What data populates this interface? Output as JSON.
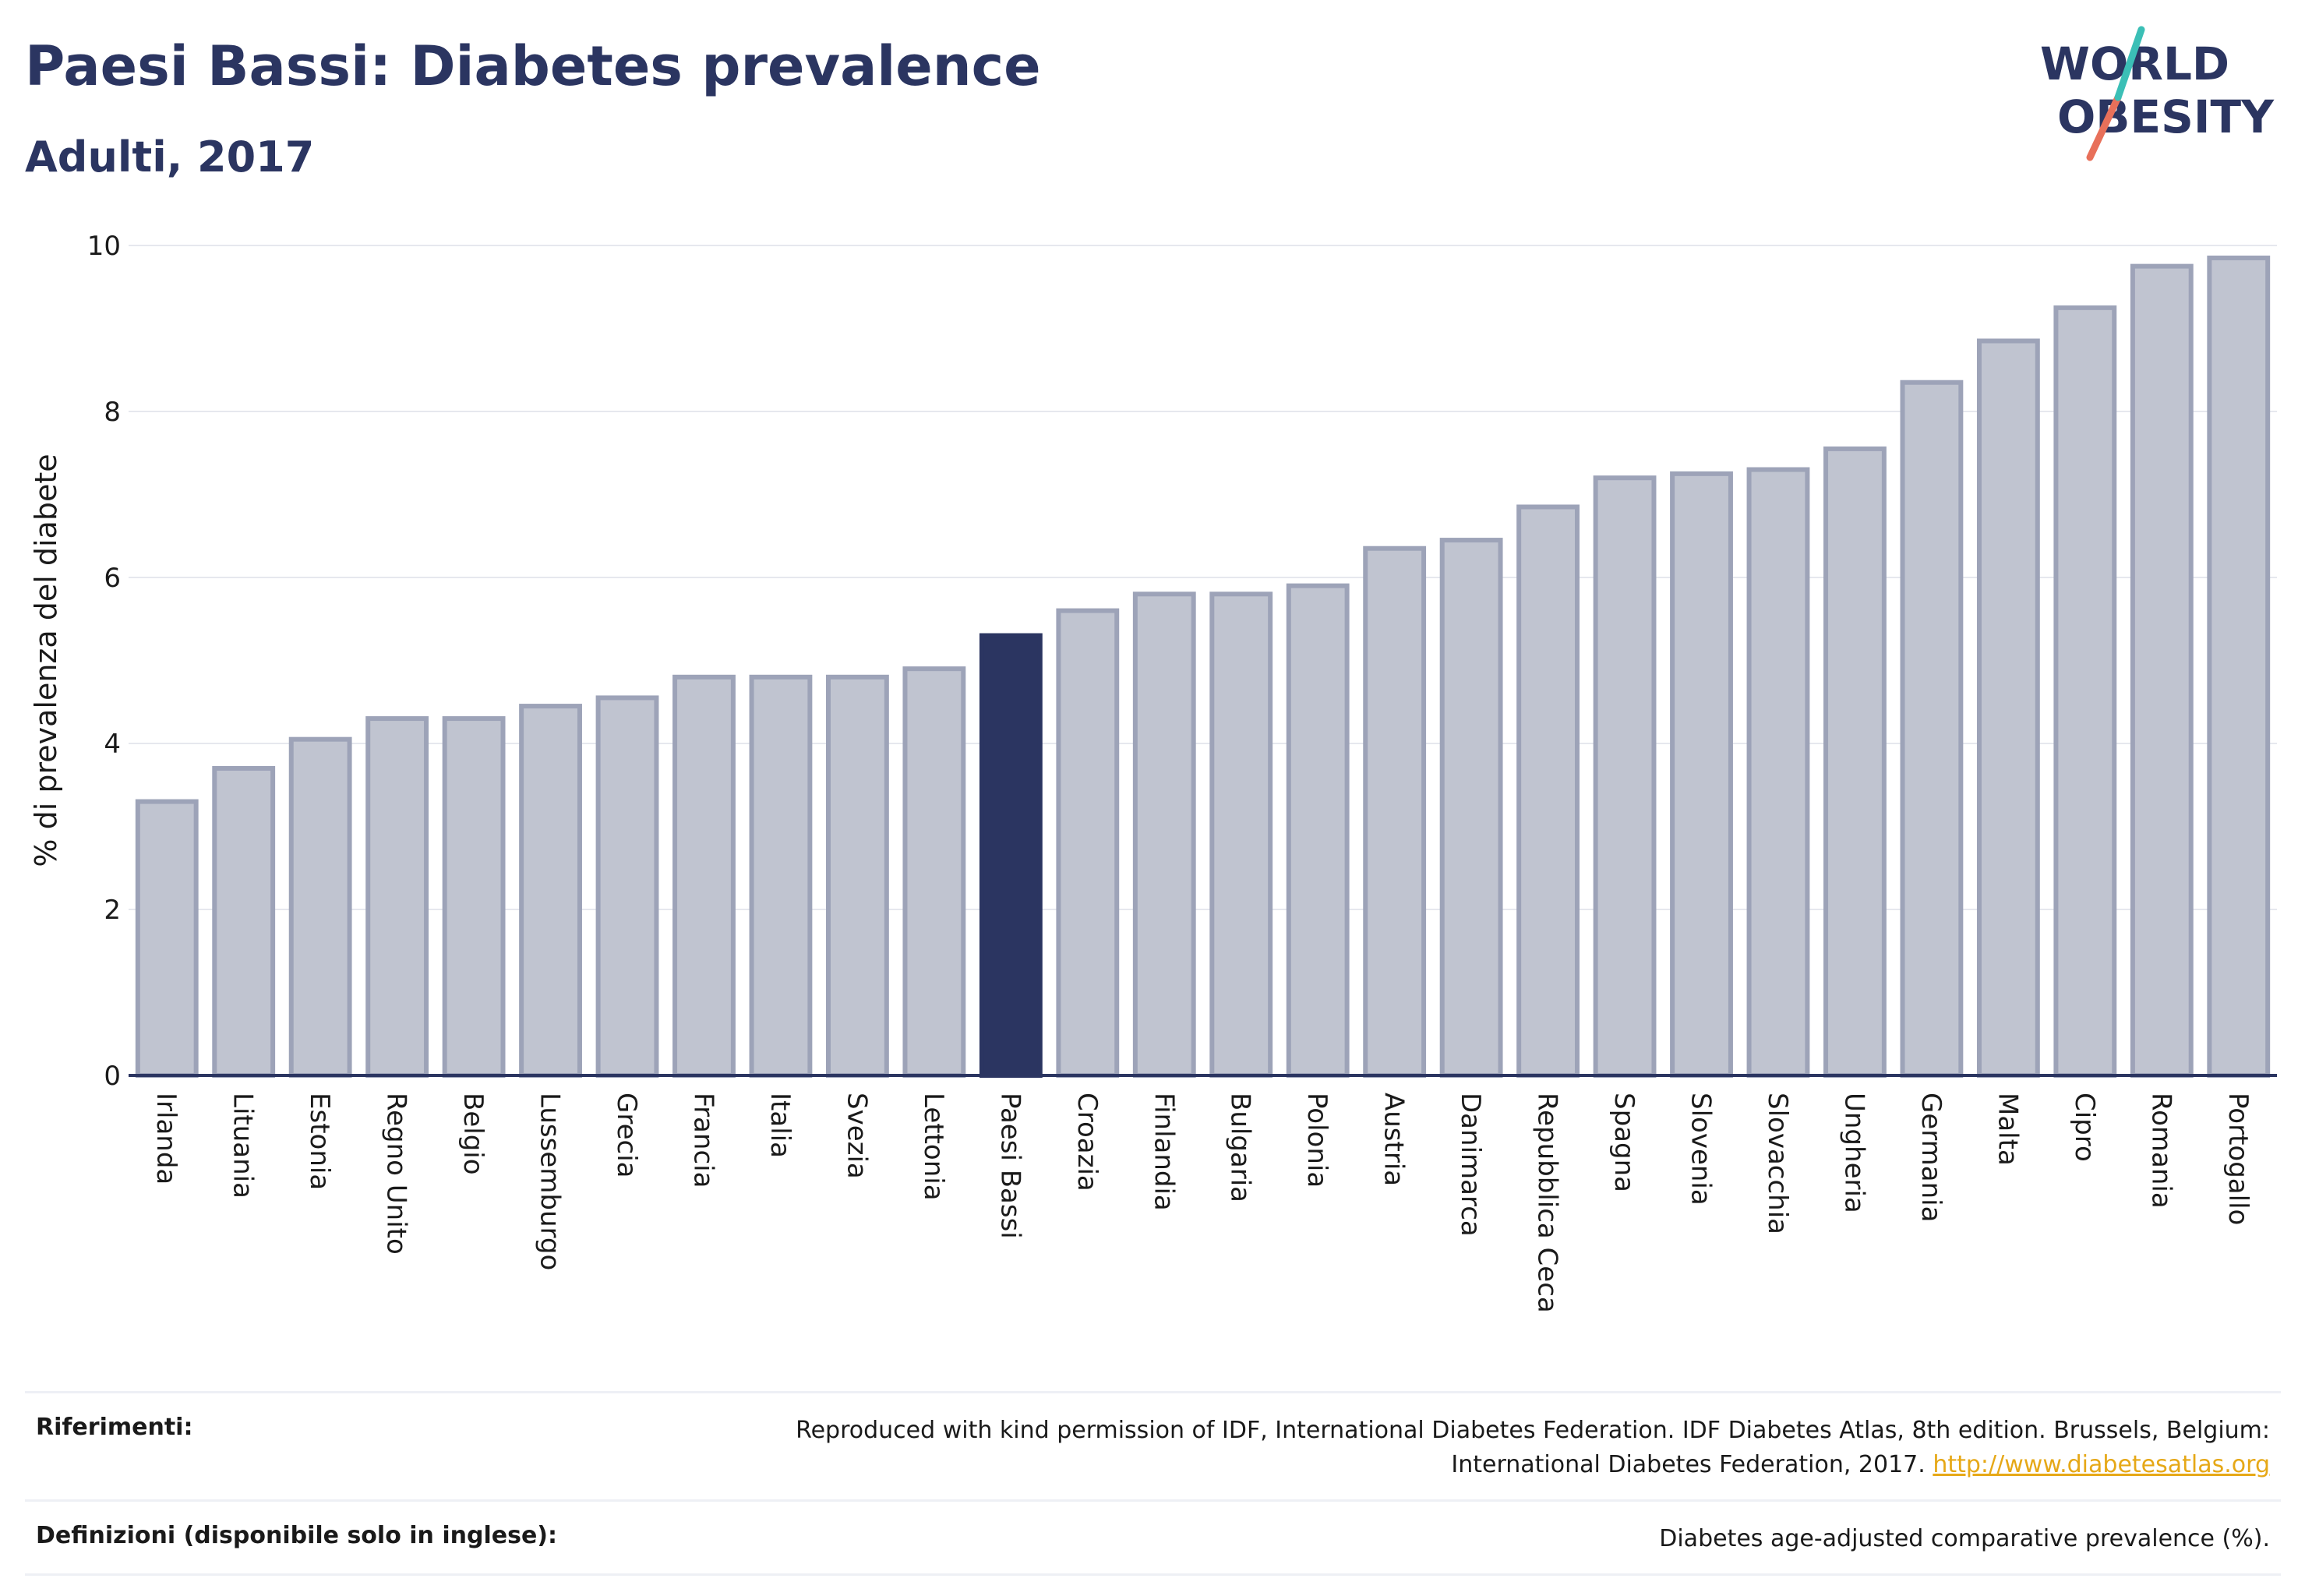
{
  "title": "Paesi Bassi: Diabetes prevalence",
  "subtitle": "Adulti, 2017",
  "logo": {
    "line1": "WORLD",
    "line2": "OBESITY"
  },
  "colors": {
    "navy": "#2b3561",
    "bar": "#c0c4d0",
    "bar_edge": "#9da3b8",
    "highlight": "#2b3561",
    "accent_teal": "#3bbfb6",
    "accent_coral": "#e8705a",
    "link": "#e6a817"
  },
  "chart_data": {
    "type": "bar",
    "ylabel": "% di prevalenza del diabete",
    "ylim": [
      0,
      10
    ],
    "yticks": [
      0,
      2,
      4,
      6,
      8,
      10
    ],
    "highlight": "Paesi Bassi",
    "categories": [
      "Irlanda",
      "Lituania",
      "Estonia",
      "Regno Unito",
      "Belgio",
      "Lussemburgo",
      "Grecia",
      "Francia",
      "Italia",
      "Svezia",
      "Lettonia",
      "Paesi Bassi",
      "Croazia",
      "Finlandia",
      "Bulgaria",
      "Polonia",
      "Austria",
      "Danimarca",
      "Repubblica Ceca",
      "Spagna",
      "Slovenia",
      "Slovacchia",
      "Ungheria",
      "Germania",
      "Malta",
      "Cipro",
      "Romania",
      "Portogallo"
    ],
    "values": [
      3.3,
      3.7,
      4.05,
      4.3,
      4.3,
      4.45,
      4.55,
      4.8,
      4.8,
      4.8,
      4.9,
      5.3,
      5.6,
      5.8,
      5.8,
      5.9,
      6.35,
      6.45,
      6.85,
      7.2,
      7.25,
      7.3,
      7.55,
      8.35,
      8.85,
      9.25,
      9.75,
      9.85
    ]
  },
  "footer": {
    "ref_label": "Riferimenti:",
    "ref_text": "Reproduced with kind permission of IDF, International Diabetes Federation. IDF Diabetes Atlas, 8th edition. Brussels, Belgium: International Diabetes Federation, 2017.",
    "ref_link": "http://www.diabetesatlas.org",
    "def_label": "Definizioni (disponibile solo in inglese):",
    "def_text": "Diabetes age-adjusted comparative prevalence (%)."
  }
}
